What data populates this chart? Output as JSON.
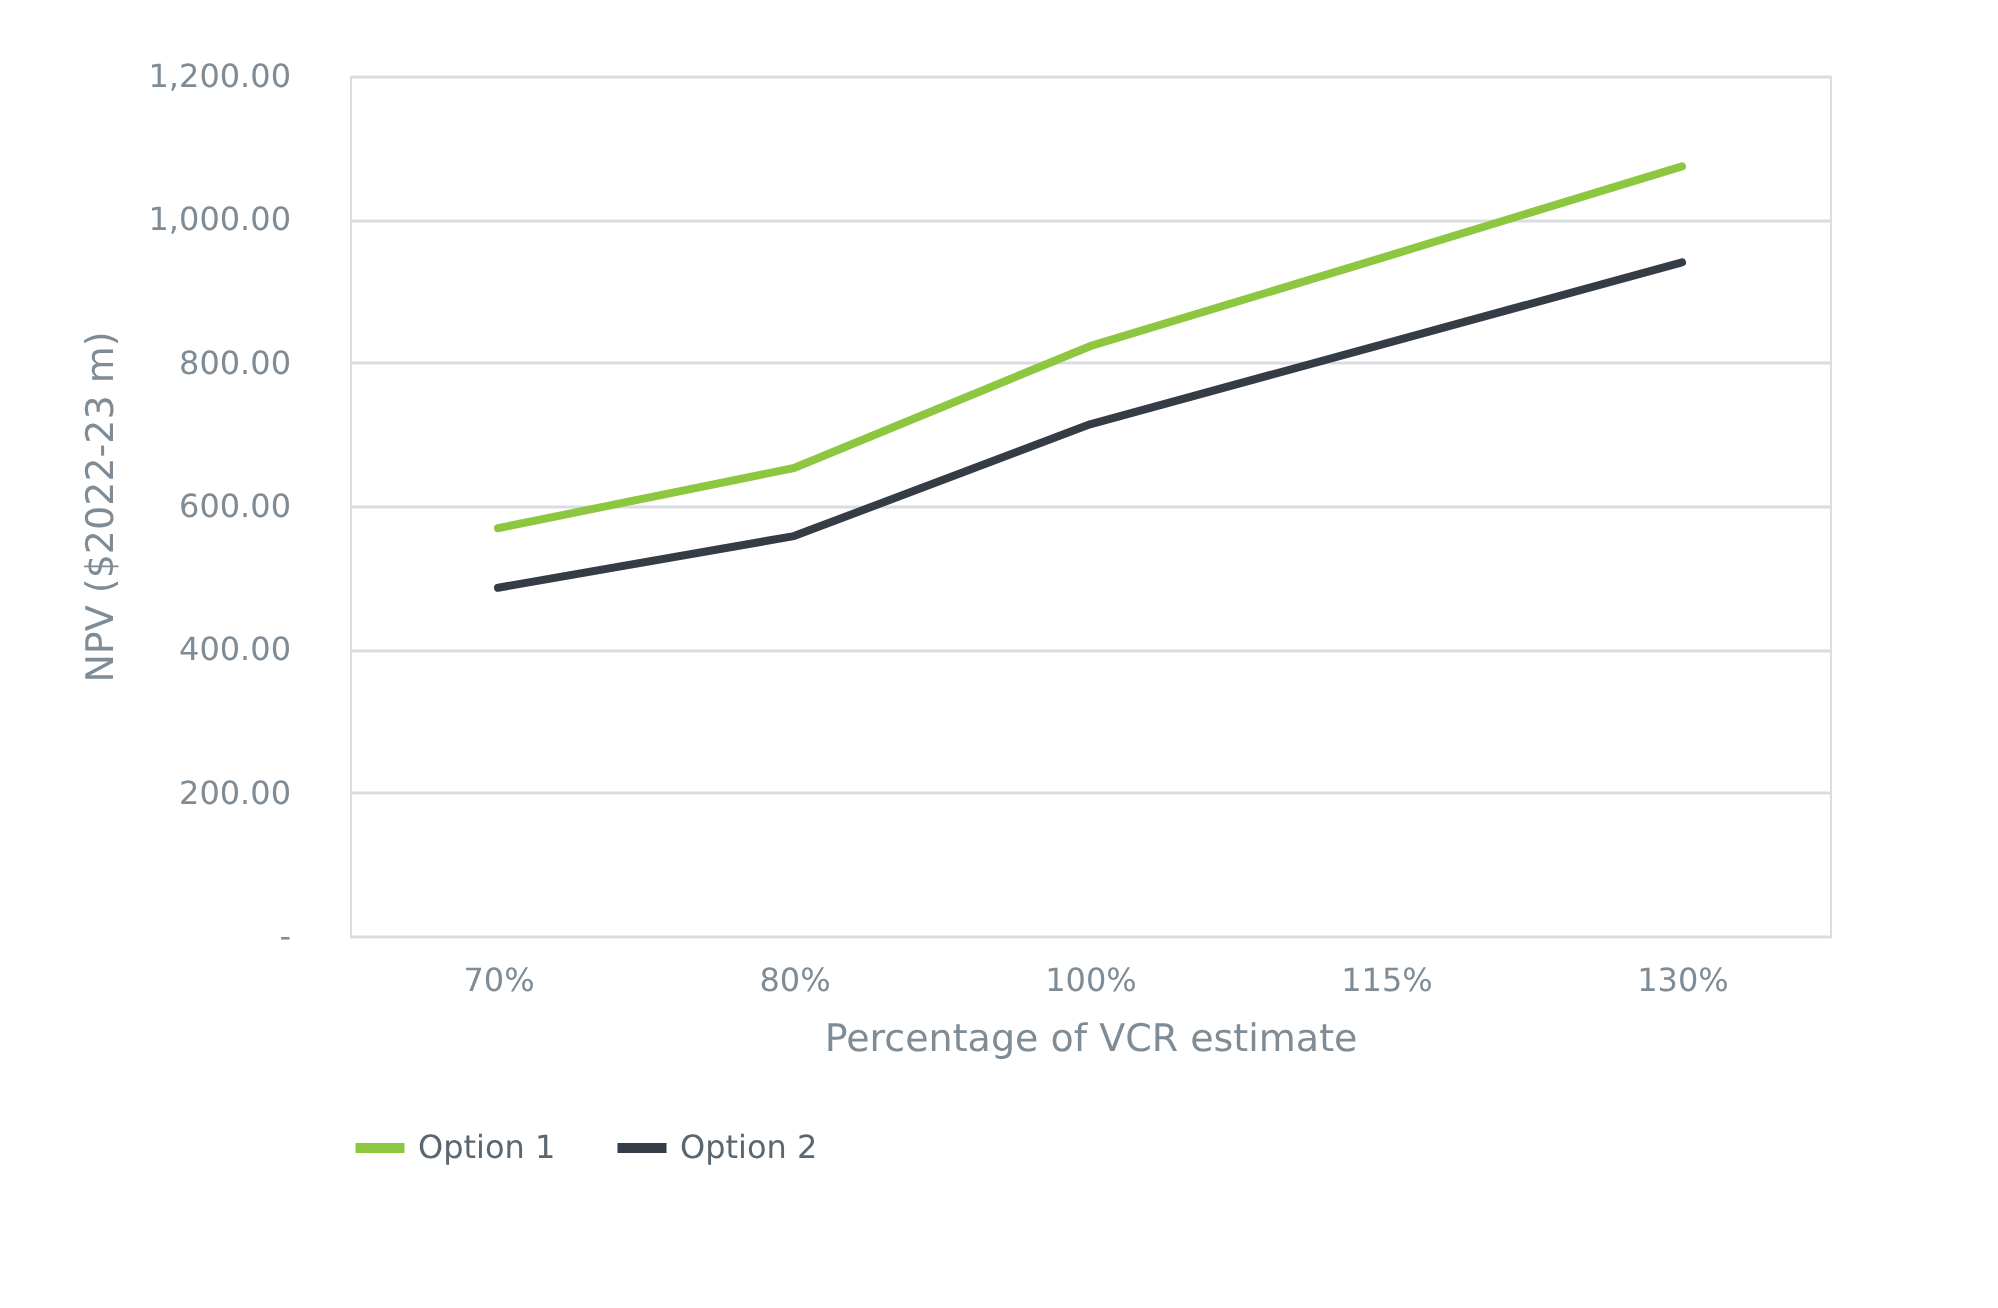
{
  "chart_data": {
    "type": "line",
    "xlabel": "Percentage of VCR estimate",
    "ylabel": "NPV ($2022-23 m)",
    "categories": [
      "70%",
      "80%",
      "100%",
      "115%",
      "130%"
    ],
    "series": [
      {
        "name": "Option 1",
        "color": "#8dc63f",
        "values": [
          569,
          653,
          823,
          948,
          1074
        ]
      },
      {
        "name": "Option 2",
        "color": "#343d46",
        "values": [
          486,
          558,
          714,
          827,
          940
        ]
      }
    ],
    "ylim": [
      0,
      1200
    ],
    "yticks": [
      {
        "value": 0,
        "label": "-"
      },
      {
        "value": 200,
        "label": "200.00"
      },
      {
        "value": 400,
        "label": "400.00"
      },
      {
        "value": 600,
        "label": "600.00"
      },
      {
        "value": 800,
        "label": "800.00"
      },
      {
        "value": 1000,
        "label": "1,000.00"
      },
      {
        "value": 1200,
        "label": "1,200.00"
      }
    ],
    "grid": "y",
    "legend": "bottom",
    "line_style": "solid",
    "marker": "none"
  }
}
